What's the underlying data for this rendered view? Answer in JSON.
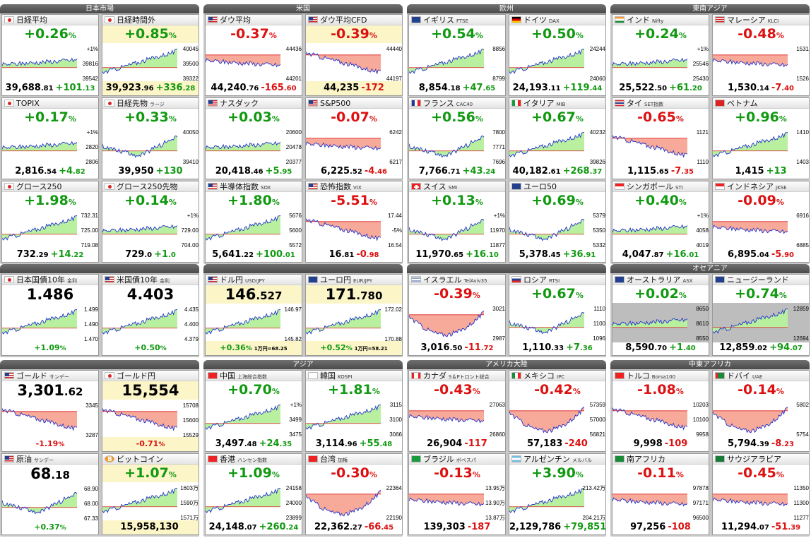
{
  "groups": [
    {
      "id": "jp",
      "label": "日本市場",
      "col": 0,
      "row": 0,
      "cards": [
        {
          "name": "日経平均",
          "sub": "",
          "flag": "jp",
          "pct": "+0.26",
          "dir": "up",
          "int": "39,688",
          "dec": ".81",
          "chg": "+101",
          "chgdec": ".13",
          "hl": false,
          "ticks": [
            "+1%",
            "39816",
            "39542"
          ],
          "shape": "flatup"
        },
        {
          "name": "日経時間外",
          "sub": "",
          "flag": "jp",
          "pct": "+0.85",
          "dir": "up",
          "int": "39,923",
          "dec": ".96",
          "chg": "+336",
          "chgdec": ".28",
          "hl": true,
          "ticks": [
            "40045",
            "39500",
            "39322"
          ],
          "shape": "rise"
        },
        {
          "name": "TOPIX",
          "sub": "",
          "flag": "jp",
          "pct": "+0.17",
          "dir": "up",
          "int": "2,816",
          "dec": ".54",
          "chg": "+4",
          "chgdec": ".82",
          "hl": false,
          "ticks": [
            "+1%",
            "2820",
            "2806"
          ],
          "shape": "flatup"
        },
        {
          "name": "日経先物",
          "sub": "ラージ",
          "flag": "jp",
          "pct": "+0.33",
          "dir": "up",
          "int": "39,950",
          "dec": "",
          "chg": "+130",
          "chgdec": "",
          "hl": false,
          "ticks": [
            "40050",
            "39410"
          ],
          "shape": "dipup"
        },
        {
          "name": "グロース250",
          "sub": "",
          "flag": "jp",
          "pct": "+1.98",
          "dir": "up",
          "int": "732",
          "dec": ".29",
          "chg": "+14",
          "chgdec": ".22",
          "hl": false,
          "ticks": [
            "732.31",
            "725.00",
            "719.08"
          ],
          "shape": "rise"
        },
        {
          "name": "グロース250先物",
          "sub": "",
          "flag": "jp",
          "pct": "+0.14",
          "dir": "up",
          "int": "729",
          "dec": ".0",
          "chg": "+1",
          "chgdec": ".0",
          "hl": false,
          "ticks": [
            "+1%",
            "729.00",
            "704.00"
          ],
          "shape": "flatup"
        }
      ]
    },
    {
      "id": "us",
      "label": "米国",
      "col": 1,
      "row": 0,
      "cards": [
        {
          "name": "ダウ平均",
          "sub": "",
          "flag": "us",
          "pct": "-0.37",
          "dir": "dn",
          "int": "44,240",
          "dec": ".76",
          "chg": "-165",
          "chgdec": ".60",
          "hl": false,
          "ticks": [
            "44436",
            "44201"
          ],
          "shape": "flatdn"
        },
        {
          "name": "ダウ平均CFD",
          "sub": "",
          "flag": "us",
          "pct": "-0.39",
          "dir": "dn",
          "int": "44,235",
          "dec": "",
          "chg": "-172",
          "chgdec": "",
          "hl": true,
          "ticks": [
            "44440",
            "44197"
          ],
          "shape": "fall"
        },
        {
          "name": "ナスダック",
          "sub": "",
          "flag": "us",
          "pct": "+0.03",
          "dir": "up",
          "int": "20,418",
          "dec": ".46",
          "chg": "+5",
          "chgdec": ".95",
          "hl": false,
          "ticks": [
            "20600",
            "20478",
            "20377"
          ],
          "shape": "flatup"
        },
        {
          "name": "S&P500",
          "sub": "",
          "flag": "us",
          "pct": "-0.07",
          "dir": "dn",
          "int": "6,225",
          "dec": ".52",
          "chg": "-4",
          "chgdec": ".46",
          "hl": false,
          "ticks": [
            "6242",
            "6217"
          ],
          "shape": "flatdn"
        },
        {
          "name": "半導体指数",
          "sub": "SOX",
          "flag": "us",
          "pct": "+1.80",
          "dir": "up",
          "int": "5,641",
          "dec": ".22",
          "chg": "+100",
          "chgdec": ".01",
          "hl": false,
          "ticks": [
            "5676",
            "5600",
            "5572"
          ],
          "shape": "rise"
        },
        {
          "name": "恐怖指数",
          "sub": "VIX",
          "flag": "us",
          "pct": "-5.51",
          "dir": "dn",
          "int": "16",
          "dec": ".81",
          "chg": "-0",
          "chgdec": ".98",
          "hl": false,
          "ticks": [
            "17.44",
            "-5%",
            "16.54"
          ],
          "shape": "fall"
        }
      ]
    },
    {
      "id": "eu",
      "label": "欧州",
      "col": 2,
      "row": 0,
      "cards": [
        {
          "name": "イギリス",
          "sub": "FTSE",
          "flag": "gb",
          "pct": "+0.54",
          "dir": "up",
          "int": "8,854",
          "dec": ".18",
          "chg": "+47",
          "chgdec": ".65",
          "hl": false,
          "ticks": [
            "8856",
            "8799"
          ],
          "shape": "rise"
        },
        {
          "name": "ドイツ",
          "sub": "DAX",
          "flag": "de",
          "pct": "+0.50",
          "dir": "up",
          "int": "24,193",
          "dec": ".11",
          "chg": "+119",
          "chgdec": ".44",
          "hl": false,
          "ticks": [
            "24244",
            "24060"
          ],
          "shape": "rise"
        },
        {
          "name": "フランス",
          "sub": "CAC40",
          "flag": "fr",
          "pct": "+0.56",
          "dir": "up",
          "int": "7,766",
          "dec": ".71",
          "chg": "+43",
          "chgdec": ".24",
          "hl": false,
          "ticks": [
            "7800",
            "7771",
            "7696"
          ],
          "shape": "dipup"
        },
        {
          "name": "イタリア",
          "sub": "MIB",
          "flag": "it",
          "pct": "+0.67",
          "dir": "up",
          "int": "40,182",
          "dec": ".61",
          "chg": "+268",
          "chgdec": ".37",
          "hl": false,
          "ticks": [
            "40232",
            "39826"
          ],
          "shape": "rise"
        },
        {
          "name": "スイス",
          "sub": "SMI",
          "flag": "ch",
          "pct": "+0.13",
          "dir": "up",
          "int": "11,970",
          "dec": ".65",
          "chg": "+16",
          "chgdec": ".10",
          "hl": false,
          "ticks": [
            "+1%",
            "11970",
            "11877"
          ],
          "shape": "dipup"
        },
        {
          "name": "ユーロ50",
          "sub": "",
          "flag": "eu",
          "pct": "+0.69",
          "dir": "up",
          "int": "5,378",
          "dec": ".45",
          "chg": "+36",
          "chgdec": ".91",
          "hl": false,
          "ticks": [
            "5379",
            "5350",
            "5332"
          ],
          "shape": "dipup"
        }
      ]
    },
    {
      "id": "sea",
      "label": "東南アジア",
      "col": 3,
      "row": 0,
      "cards": [
        {
          "name": "インド",
          "sub": "Nifty",
          "flag": "in",
          "pct": "+0.24",
          "dir": "up",
          "int": "25,522",
          "dec": ".50",
          "chg": "+61",
          "chgdec": ".20",
          "hl": false,
          "ticks": [
            "+1%",
            "25546",
            "25430"
          ],
          "shape": "flatup"
        },
        {
          "name": "マレーシア",
          "sub": "KLCI",
          "flag": "my",
          "pct": "-0.48",
          "dir": "dn",
          "int": "1,530",
          "dec": ".14",
          "chg": "-7",
          "chgdec": ".40",
          "hl": false,
          "ticks": [
            "1531",
            "1526"
          ],
          "shape": "flatdn"
        },
        {
          "name": "タイ",
          "sub": "SET指数",
          "flag": "th",
          "pct": "-0.65",
          "dir": "dn",
          "int": "1,115",
          "dec": ".65",
          "chg": "-7",
          "chgdec": ".35",
          "hl": false,
          "ticks": [
            "1121",
            "1110"
          ],
          "shape": "fall"
        },
        {
          "name": "ベトナム",
          "sub": "",
          "flag": "vn",
          "pct": "+0.96",
          "dir": "up",
          "int": "1,415",
          "dec": "",
          "chg": "+13",
          "chgdec": "",
          "hl": false,
          "ticks": [
            "1410",
            "1403"
          ],
          "shape": "rise"
        },
        {
          "name": "シンガポール",
          "sub": "STI",
          "flag": "sg",
          "pct": "+0.40",
          "dir": "up",
          "int": "4,047",
          "dec": ".87",
          "chg": "+16",
          "chgdec": ".01",
          "hl": false,
          "ticks": [
            "+1%",
            "4058",
            "4019"
          ],
          "shape": "flatup"
        },
        {
          "name": "インドネシア",
          "sub": "JKSE",
          "flag": "id",
          "pct": "-0.09",
          "dir": "dn",
          "int": "6,895",
          "dec": ".04",
          "chg": "-5",
          "chgdec": ".90",
          "hl": false,
          "ticks": [
            "6916",
            "6885"
          ],
          "shape": "flatdn"
        }
      ]
    },
    {
      "id": "bond",
      "label": "",
      "col": 0,
      "row": 1,
      "cards": [
        {
          "name": "日本国債10年",
          "sub": "金利",
          "flag": "jp",
          "big": "1.486",
          "bigdec": "",
          "dir": "up",
          "pct": "+1.09",
          "hl": false,
          "ticks": [
            "1.499",
            "1.490",
            "1.470"
          ],
          "shape": "rise",
          "kind": "bond"
        },
        {
          "name": "米国債10年",
          "sub": "金利",
          "flag": "us",
          "big": "4.403",
          "bigdec": "",
          "dir": "up",
          "pct": "+0.50",
          "hl": false,
          "ticks": [
            "4.435",
            "4.400",
            "4.379"
          ],
          "shape": "rise",
          "kind": "bond"
        }
      ]
    },
    {
      "id": "fx",
      "label": "",
      "col": 1,
      "row": 1,
      "cards": [
        {
          "name": "ドル円",
          "sub": "USD/JPY",
          "flag": "us",
          "big": "146",
          "bigdec": ".527",
          "dir": "up",
          "pct": "+0.36",
          "extra": "1万円=68.25",
          "hl": true,
          "ticks": [
            "146.97",
            "145.82"
          ],
          "shape": "rise",
          "kind": "fx"
        },
        {
          "name": "ユーロ円",
          "sub": "EUR/JPY",
          "flag": "eu",
          "big": "171",
          "bigdec": ".780",
          "dir": "up",
          "pct": "+0.52",
          "extra": "1万円=58.21",
          "hl": true,
          "ticks": [
            "172.02",
            "170.88"
          ],
          "shape": "rise",
          "kind": "fx"
        }
      ]
    },
    {
      "id": "me",
      "label": "",
      "col": 2,
      "row": 1,
      "cards": [
        {
          "name": "イスラエル",
          "sub": "TelAviv35",
          "flag": "il",
          "pct": "-0.39",
          "dir": "dn",
          "int": "3,016",
          "dec": ".50",
          "chg": "-11",
          "chgdec": ".72",
          "hl": false,
          "ticks": [
            "3021",
            "2987"
          ],
          "shape": "vdip"
        },
        {
          "name": "ロシア",
          "sub": "RTSI",
          "flag": "ru",
          "pct": "+0.67",
          "dir": "up",
          "int": "1,110",
          "dec": ".33",
          "chg": "+7",
          "chgdec": ".36",
          "hl": false,
          "ticks": [
            "1110",
            "1100",
            "1096"
          ],
          "shape": "dipup"
        }
      ]
    },
    {
      "id": "oc",
      "label": "オセアニア",
      "col": 3,
      "row": 1,
      "cards": [
        {
          "name": "オーストラリア",
          "sub": "ASX",
          "flag": "au",
          "pct": "+0.02",
          "dir": "up",
          "int": "8,590",
          "dec": ".70",
          "chg": "+1",
          "chgdec": ".40",
          "hl": false,
          "ticks": [
            "8650",
            "8610",
            "8550"
          ],
          "shape": "flatup",
          "gray": true
        },
        {
          "name": "ニュージーランド",
          "sub": "",
          "flag": "nz",
          "pct": "+0.74",
          "dir": "up",
          "int": "12,859",
          "dec": ".02",
          "chg": "+94",
          "chgdec": ".07",
          "hl": false,
          "ticks": [
            "12859",
            "12694"
          ],
          "shape": "rise",
          "gray": true
        }
      ]
    },
    {
      "id": "cmd",
      "label": "",
      "col": 0,
      "row": 2,
      "cards": [
        {
          "name": "ゴールド",
          "sub": "サンデー",
          "flag": "us",
          "big": "3,301",
          "bigdec": ".62",
          "dir": "dn",
          "pct": "-1.19",
          "hl": false,
          "ticks": [
            "3345",
            "3287"
          ],
          "shape": "fall",
          "kind": "bond"
        },
        {
          "name": "ゴールド円",
          "sub": "",
          "flag": "jp",
          "big": "15,554",
          "bigdec": "",
          "dir": "dn",
          "pct": "-0.71",
          "hl": true,
          "ticks": [
            "15708",
            "15600",
            "15529"
          ],
          "shape": "fall",
          "kind": "bond"
        },
        {
          "name": "原油",
          "sub": "サンデー",
          "flag": "us",
          "big": "68",
          "bigdec": ".18",
          "dir": "up",
          "pct": "+0.37",
          "hl": false,
          "ticks": [
            "68.90",
            "68.00",
            "67.33"
          ],
          "shape": "dipup",
          "kind": "bond"
        },
        {
          "name": "ビットコイン",
          "sub": "",
          "flag": "btc",
          "pct": "+1.07",
          "dir": "up",
          "int": "15,958,130",
          "dec": "",
          "chg": "",
          "chgdec": "",
          "hl": true,
          "ticks": [
            "1603万",
            "1590万",
            "1571万"
          ],
          "shape": "rise"
        }
      ]
    },
    {
      "id": "asia",
      "label": "アジア",
      "col": 1,
      "row": 2,
      "cards": [
        {
          "name": "中国",
          "sub": "上海総合指数",
          "flag": "cn",
          "pct": "+0.70",
          "dir": "up",
          "int": "3,497",
          "dec": ".48",
          "chg": "+24",
          "chgdec": ".35",
          "hl": false,
          "ticks": [
            "+1%",
            "3499",
            "3475"
          ],
          "shape": "rise"
        },
        {
          "name": "韓国",
          "sub": "KOSPI",
          "flag": "kr",
          "pct": "+1.81",
          "dir": "up",
          "int": "3,114",
          "dec": ".96",
          "chg": "+55",
          "chgdec": ".48",
          "hl": false,
          "ticks": [
            "3115",
            "3100",
            "3066"
          ],
          "shape": "rise"
        },
        {
          "name": "香港",
          "sub": "ハンセン指数",
          "flag": "hk",
          "pct": "+1.09",
          "dir": "up",
          "int": "24,148",
          "dec": ".07",
          "chg": "+260",
          "chgdec": ".24",
          "hl": false,
          "ticks": [
            "24158",
            "24000",
            "23899"
          ],
          "shape": "rise"
        },
        {
          "name": "台湾",
          "sub": "加権",
          "flag": "tw",
          "pct": "-0.30",
          "dir": "dn",
          "int": "22,362",
          "dec": ".27",
          "chg": "-66",
          "chgdec": ".45",
          "hl": false,
          "ticks": [
            "22364",
            "22190"
          ],
          "shape": "vdip"
        }
      ]
    },
    {
      "id": "am",
      "label": "アメリカ大陸",
      "col": 2,
      "row": 2,
      "cards": [
        {
          "name": "カナダ",
          "sub": "S＆Pトロント総合",
          "flag": "ca",
          "pct": "-0.43",
          "dir": "dn",
          "int": "26,904",
          "dec": "",
          "chg": "-117",
          "chgdec": "",
          "hl": false,
          "ticks": [
            "27063",
            "26860"
          ],
          "shape": "flatdn"
        },
        {
          "name": "メキシコ",
          "sub": "IPC",
          "flag": "mx",
          "pct": "-0.42",
          "dir": "dn",
          "int": "57,183",
          "dec": "",
          "chg": "-240",
          "chgdec": "",
          "hl": false,
          "ticks": [
            "57359",
            "57000",
            "56821"
          ],
          "shape": "vdip"
        },
        {
          "name": "ブラジル",
          "sub": "ボベスパ",
          "flag": "br",
          "pct": "-0.13",
          "dir": "dn",
          "int": "139,303",
          "dec": "",
          "chg": "-187",
          "chgdec": "",
          "hl": false,
          "ticks": [
            "13.95万",
            "13.90万",
            "13.87万"
          ],
          "shape": "flatdn"
        },
        {
          "name": "アルゼンチン",
          "sub": "メルバル",
          "flag": "ar",
          "pct": "+3.90",
          "dir": "up",
          "int": "2,129,786",
          "dec": "",
          "chg": "+79,851",
          "chgdec": "",
          "hl": false,
          "ticks": [
            "213.42万",
            "204.21万"
          ],
          "shape": "rise"
        }
      ]
    },
    {
      "id": "mea",
      "label": "中東アフリカ",
      "col": 3,
      "row": 2,
      "cards": [
        {
          "name": "トルコ",
          "sub": "Borsa100",
          "flag": "tr",
          "pct": "-1.08",
          "dir": "dn",
          "int": "9,998",
          "dec": "",
          "chg": "-109",
          "chgdec": "",
          "hl": false,
          "ticks": [
            "10203",
            "10100",
            "9958"
          ],
          "shape": "fall"
        },
        {
          "name": "ドバイ",
          "sub": "UAE",
          "flag": "ae",
          "pct": "-0.14",
          "dir": "dn",
          "int": "5,794",
          "dec": ".39",
          "chg": "-8",
          "chgdec": ".23",
          "hl": false,
          "ticks": [
            "5802",
            "5754"
          ],
          "shape": "vdip"
        },
        {
          "name": "南アフリカ",
          "sub": "",
          "flag": "za",
          "pct": "-0.11",
          "dir": "dn",
          "int": "97,256",
          "dec": "",
          "chg": "-108",
          "chgdec": "",
          "hl": false,
          "ticks": [
            "97878",
            "97171",
            "96500"
          ],
          "shape": "flatdn"
        },
        {
          "name": "サウジアラビア",
          "sub": "",
          "flag": "sa",
          "pct": "-0.45",
          "dir": "dn",
          "int": "11,294",
          "dec": ".07",
          "chg": "-51",
          "chgdec": ".39",
          "hl": false,
          "ticks": [
            "11350",
            "11300",
            "11277"
          ],
          "shape": "flatdn"
        }
      ]
    }
  ],
  "colors": {
    "up": "#119911",
    "down": "#dd1111",
    "upFill": "#b8f0a0",
    "downFill": "#f7a99a",
    "line": "#2233cc",
    "highlight": "#fbf5c8",
    "header": "#555555"
  }
}
